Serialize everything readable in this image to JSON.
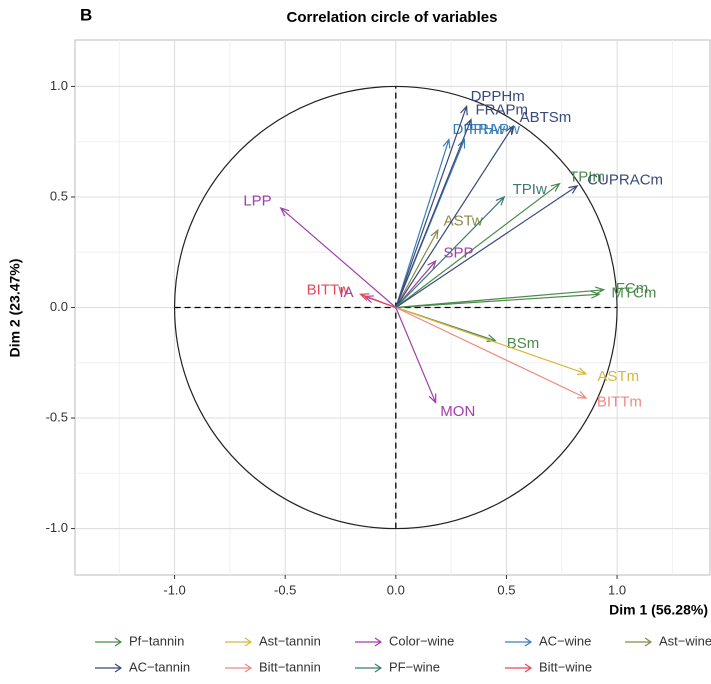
{
  "chart_data": {
    "type": "correlation-circle",
    "panel_label": "B",
    "title": "Correlation circle of variables",
    "xlabel": "Dim 1 (56.28%)",
    "ylabel": "Dim 2 (23.47%)",
    "xlim": [
      -1.45,
      1.42
    ],
    "ylim": [
      -1.21,
      1.21
    ],
    "xticks": [
      {
        "value": -1,
        "label": "-1.0"
      },
      -0.5,
      {
        "value": 0,
        "label": "0.0"
      },
      0.5,
      {
        "value": 1,
        "label": "1.0"
      }
    ],
    "yticks": [
      {
        "value": -1,
        "label": "-1.0"
      },
      -0.5,
      {
        "value": 0,
        "label": "0.0"
      },
      0.5,
      {
        "value": 1,
        "label": "1.0"
      }
    ],
    "grid": true,
    "series": [
      {
        "name": "Pf−tannin",
        "color": "#4c8a4c",
        "labels": [
          "TPIm",
          "FCm",
          "MTCm",
          "BSm"
        ],
        "x": [
          0.74,
          0.94,
          0.92,
          0.45
        ],
        "y": [
          0.56,
          0.08,
          0.06,
          -0.15
        ]
      },
      {
        "name": "Ast−tannin",
        "color": "#d8b83a",
        "labels": [
          "ASTm"
        ],
        "x": [
          0.86
        ],
        "y": [
          -0.3
        ]
      },
      {
        "name": "Color−wine",
        "color": "#a040a8",
        "labels": [
          "LPP",
          "SPP",
          "IA",
          "MON"
        ],
        "x": [
          -0.52,
          0.18,
          -0.14,
          0.18
        ],
        "y": [
          0.45,
          0.21,
          0.05,
          -0.43
        ]
      },
      {
        "name": "AC−wine",
        "color": "#3a80b8",
        "labels": [
          "DPPHw",
          "FRAPw"
        ],
        "x": [
          0.24,
          0.31
        ],
        "y": [
          0.76,
          0.76
        ]
      },
      {
        "name": "Ast−wine",
        "color": "#8a8a4a",
        "labels": [
          "ASTw"
        ],
        "x": [
          0.19
        ],
        "y": [
          0.35
        ]
      },
      {
        "name": "AC−tannin",
        "color": "#3a4a7a",
        "labels": [
          "DPPHm",
          "FRAPm",
          "ABTSm",
          "CUPRACm"
        ],
        "x": [
          0.32,
          0.34,
          0.53,
          0.82
        ],
        "y": [
          0.91,
          0.85,
          0.82,
          0.55
        ]
      },
      {
        "name": "Bitt−tannin",
        "color": "#f08a80",
        "labels": [
          "BITTm"
        ],
        "x": [
          0.86
        ],
        "y": [
          -0.41
        ]
      },
      {
        "name": "PF−wine",
        "color": "#3a7a70",
        "labels": [
          "TPIw"
        ],
        "x": [
          0.49
        ],
        "y": [
          0.5
        ]
      },
      {
        "name": "Bitt−wine",
        "color": "#e84858",
        "labels": [
          "BITTw"
        ],
        "x": [
          -0.16
        ],
        "y": [
          0.06
        ]
      }
    ]
  }
}
